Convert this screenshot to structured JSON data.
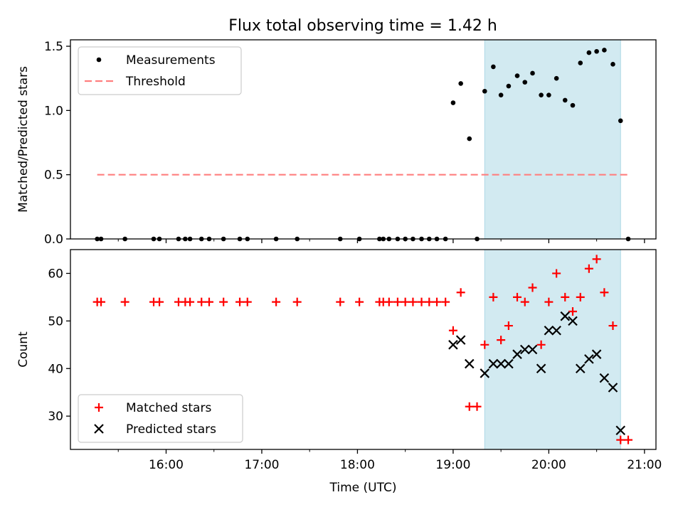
{
  "figure_title": "Flux total observing time = 1.42 h",
  "colors": {
    "measurement": "#000000",
    "threshold": "#ff7f7f",
    "matched": "#ff0000",
    "predicted": "#000000",
    "span": "#add8e6"
  },
  "chart_data": [
    {
      "type": "scatter",
      "title": "Flux total observing time = 1.42 h",
      "xlabel": "",
      "ylabel": "Matched/Predicted stars",
      "x_format": "HH:MM",
      "xlim": [
        15.0,
        21.12
      ],
      "ylim": [
        0.0,
        1.55
      ],
      "xticks": [
        16,
        17,
        18,
        19,
        20,
        21
      ],
      "xtick_labels": [],
      "yticks": [
        0.0,
        0.5,
        1.0,
        1.5
      ],
      "ytick_labels": [
        "0.0",
        "0.5",
        "1.0",
        "1.5"
      ],
      "grid": false,
      "legend_position": "upper left",
      "shaded_span": {
        "from": 19.33,
        "to": 20.75
      },
      "threshold": {
        "name": "Threshold",
        "y": 0.5,
        "from": 15.28,
        "to": 20.83
      },
      "series": [
        {
          "name": "Measurements",
          "marker": "dot",
          "points": [
            [
              15.28,
              0
            ],
            [
              15.32,
              0
            ],
            [
              15.57,
              0
            ],
            [
              15.87,
              0
            ],
            [
              15.93,
              0
            ],
            [
              16.13,
              0
            ],
            [
              16.2,
              0
            ],
            [
              16.25,
              0
            ],
            [
              16.37,
              0
            ],
            [
              16.45,
              0
            ],
            [
              16.6,
              0
            ],
            [
              16.77,
              0
            ],
            [
              16.85,
              0
            ],
            [
              17.15,
              0
            ],
            [
              17.37,
              0
            ],
            [
              17.82,
              0
            ],
            [
              18.02,
              0
            ],
            [
              18.23,
              0
            ],
            [
              18.27,
              0
            ],
            [
              18.33,
              0
            ],
            [
              18.42,
              0
            ],
            [
              18.5,
              0
            ],
            [
              18.58,
              0
            ],
            [
              18.67,
              0
            ],
            [
              18.75,
              0
            ],
            [
              18.83,
              0
            ],
            [
              18.92,
              0
            ],
            [
              19.0,
              1.06
            ],
            [
              19.08,
              1.21
            ],
            [
              19.17,
              0.78
            ],
            [
              19.25,
              0
            ],
            [
              19.33,
              1.15
            ],
            [
              19.42,
              1.34
            ],
            [
              19.5,
              1.12
            ],
            [
              19.58,
              1.19
            ],
            [
              19.67,
              1.27
            ],
            [
              19.75,
              1.22
            ],
            [
              19.83,
              1.29
            ],
            [
              19.92,
              1.12
            ],
            [
              20.0,
              1.12
            ],
            [
              20.08,
              1.25
            ],
            [
              20.17,
              1.08
            ],
            [
              20.25,
              1.04
            ],
            [
              20.33,
              1.37
            ],
            [
              20.42,
              1.45
            ],
            [
              20.5,
              1.46
            ],
            [
              20.58,
              1.47
            ],
            [
              20.67,
              1.36
            ],
            [
              20.75,
              0.92
            ],
            [
              20.83,
              0
            ]
          ]
        }
      ]
    },
    {
      "type": "scatter",
      "title": "",
      "xlabel": "Time (UTC)",
      "ylabel": "Count",
      "x_format": "HH:MM",
      "xlim": [
        15.0,
        21.12
      ],
      "ylim": [
        23.0,
        65.0
      ],
      "xticks": [
        16,
        17,
        18,
        19,
        20,
        21
      ],
      "xtick_labels": [
        "16:00",
        "17:00",
        "18:00",
        "19:00",
        "20:00",
        "21:00"
      ],
      "yticks": [
        30,
        40,
        50,
        60
      ],
      "ytick_labels": [
        "30",
        "40",
        "50",
        "60"
      ],
      "grid": false,
      "legend_position": "lower left",
      "shaded_span": {
        "from": 19.33,
        "to": 20.75
      },
      "series": [
        {
          "name": "Matched stars",
          "marker": "plus",
          "points": [
            [
              15.28,
              54
            ],
            [
              15.32,
              54
            ],
            [
              15.57,
              54
            ],
            [
              15.87,
              54
            ],
            [
              15.93,
              54
            ],
            [
              16.13,
              54
            ],
            [
              16.2,
              54
            ],
            [
              16.25,
              54
            ],
            [
              16.37,
              54
            ],
            [
              16.45,
              54
            ],
            [
              16.6,
              54
            ],
            [
              16.77,
              54
            ],
            [
              16.85,
              54
            ],
            [
              17.15,
              54
            ],
            [
              17.37,
              54
            ],
            [
              17.82,
              54
            ],
            [
              18.02,
              54
            ],
            [
              18.23,
              54
            ],
            [
              18.27,
              54
            ],
            [
              18.33,
              54
            ],
            [
              18.42,
              54
            ],
            [
              18.5,
              54
            ],
            [
              18.58,
              54
            ],
            [
              18.67,
              54
            ],
            [
              18.75,
              54
            ],
            [
              18.83,
              54
            ],
            [
              18.92,
              54
            ],
            [
              19.0,
              48
            ],
            [
              19.08,
              56
            ],
            [
              19.17,
              32
            ],
            [
              19.25,
              32
            ],
            [
              19.33,
              45
            ],
            [
              19.42,
              55
            ],
            [
              19.5,
              46
            ],
            [
              19.58,
              49
            ],
            [
              19.67,
              55
            ],
            [
              19.75,
              54
            ],
            [
              19.83,
              57
            ],
            [
              19.92,
              45
            ],
            [
              20.0,
              54
            ],
            [
              20.08,
              60
            ],
            [
              20.17,
              55
            ],
            [
              20.25,
              52
            ],
            [
              20.33,
              55
            ],
            [
              20.42,
              61
            ],
            [
              20.5,
              63
            ],
            [
              20.58,
              56
            ],
            [
              20.67,
              49
            ],
            [
              20.75,
              25
            ],
            [
              20.83,
              25
            ]
          ]
        },
        {
          "name": "Predicted stars",
          "marker": "x",
          "points": [
            [
              19.0,
              45
            ],
            [
              19.08,
              46
            ],
            [
              19.17,
              41
            ],
            [
              19.33,
              39
            ],
            [
              19.42,
              41
            ],
            [
              19.5,
              41
            ],
            [
              19.58,
              41
            ],
            [
              19.67,
              43
            ],
            [
              19.75,
              44
            ],
            [
              19.83,
              44
            ],
            [
              19.92,
              40
            ],
            [
              20.0,
              48
            ],
            [
              20.08,
              48
            ],
            [
              20.17,
              51
            ],
            [
              20.25,
              50
            ],
            [
              20.33,
              40
            ],
            [
              20.42,
              42
            ],
            [
              20.5,
              43
            ],
            [
              20.58,
              38
            ],
            [
              20.67,
              36
            ],
            [
              20.75,
              27
            ]
          ]
        }
      ]
    }
  ]
}
